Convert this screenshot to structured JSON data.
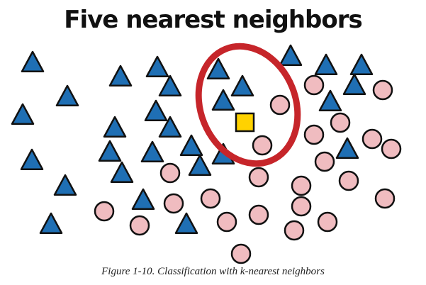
{
  "title": "Five nearest neighbors",
  "caption": "Figure 1-10. Classification with k-nearest neighbors",
  "colors": {
    "triangle_fill": "#1f6fb4",
    "circle_fill": "#f0bcc0",
    "query_fill": "#ffd200",
    "outline": "#111111",
    "ellipse": "#c6252a"
  },
  "icons": {
    "triangle": "class-a-triangle-icon",
    "circle": "class-b-circle-icon",
    "square": "query-point-square-icon"
  }
}
